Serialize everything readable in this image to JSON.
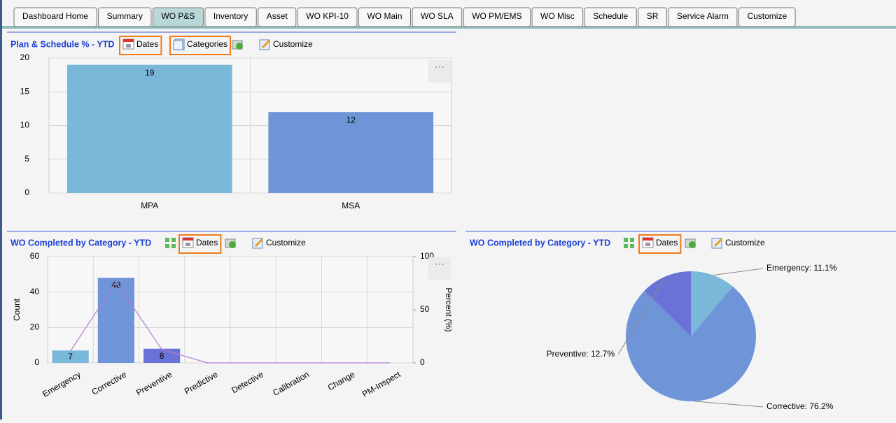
{
  "tabs": [
    {
      "label": "Dashboard Home",
      "active": false
    },
    {
      "label": "Summary",
      "active": false
    },
    {
      "label": "WO P&S",
      "active": true
    },
    {
      "label": "Inventory",
      "active": false
    },
    {
      "label": "Asset",
      "active": false
    },
    {
      "label": "WO KPI-10",
      "active": false
    },
    {
      "label": "WO Main",
      "active": false
    },
    {
      "label": "WO SLA",
      "active": false
    },
    {
      "label": "WO PM/EMS",
      "active": false
    },
    {
      "label": "WO Misc",
      "active": false
    },
    {
      "label": "Schedule",
      "active": false
    },
    {
      "label": "SR",
      "active": false
    },
    {
      "label": "Service Alarm",
      "active": false
    },
    {
      "label": "Customize",
      "active": false
    }
  ],
  "panels": [
    {
      "title": "Plan & Schedule % - YTD",
      "toolbar": [
        {
          "label": "Dates",
          "highlighted": true
        },
        {
          "label": "Categories",
          "highlighted": true
        },
        {
          "label": "Customize",
          "highlighted": false
        }
      ],
      "chart_data": {
        "type": "bar",
        "categories": [
          "MPA",
          "MSA"
        ],
        "values": [
          19,
          12
        ],
        "colors": [
          "#79b8d9",
          "#6f95d8"
        ],
        "ylim": [
          0,
          20
        ],
        "yticks": [
          0,
          5,
          10,
          15,
          20
        ],
        "grid": true
      }
    },
    {
      "title": "WO Completed by Category - YTD",
      "toolbar": [
        {
          "label": "Dates",
          "highlighted": true
        },
        {
          "label": "Customize",
          "highlighted": false
        }
      ],
      "chart_data": {
        "type": "bar-line",
        "ylabel": "Count",
        "y2label": "Percent (%)",
        "categories": [
          "Emergency",
          "Corrective",
          "Preventive",
          "Predictive",
          "Detective",
          "Calibration",
          "Change",
          "PM-Inspect"
        ],
        "series": [
          {
            "values": [
              7,
              48,
              8,
              0,
              0,
              0,
              0,
              0
            ],
            "value_labels": [
              "7",
              "48",
              "8",
              null,
              null,
              null,
              null,
              null
            ],
            "colors": [
              "#79b8d9",
              "#6f95d8",
              "#6a72d8",
              "#6f95d8",
              "#6f95d8",
              "#6f95d8",
              "#6f95d8",
              "#6f95d8"
            ]
          },
          {
            "values": [
              11.1,
              76.2,
              12.7,
              0,
              0,
              0,
              0,
              0
            ],
            "color": "#b57fd0",
            "axis": "y2"
          }
        ],
        "ylim": [
          0,
          60
        ],
        "yticks": [
          0,
          20,
          40,
          60
        ],
        "y2lim": [
          0,
          100
        ],
        "y2ticks": [
          0,
          50,
          100
        ],
        "grid": true
      }
    },
    {
      "title": "WO Completed by Category - YTD",
      "toolbar": [
        {
          "label": "Dates",
          "highlighted": true
        },
        {
          "label": "Customize",
          "highlighted": false
        }
      ],
      "chart_data": {
        "type": "pie",
        "values": [
          11.1,
          76.2,
          12.7
        ],
        "value_labels": [
          "Emergency: 11.1%",
          "Corrective: 76.2%",
          "Preventive: 12.7%"
        ],
        "colors": [
          "#79b8d9",
          "#6f95d8",
          "#6a72d8"
        ]
      }
    }
  ]
}
